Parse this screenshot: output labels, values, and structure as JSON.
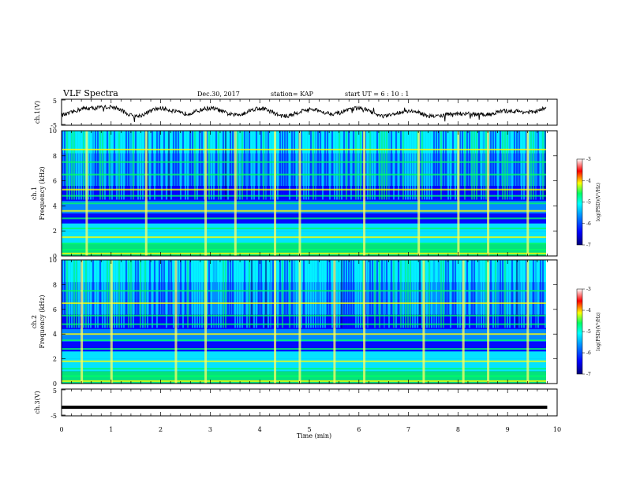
{
  "header": {
    "title": "VLF Spectra",
    "date": "Dec.30, 2017",
    "station": "station= KAP",
    "start": "start  UT =   6  : 10 : 1"
  },
  "chart_data": [
    {
      "type": "line",
      "panel": "ch1-waveform",
      "ylabel": "ch.1(V)",
      "ylim": [
        -5,
        5
      ],
      "yticks": [
        "5",
        "-5"
      ],
      "xlim": [
        0,
        10
      ],
      "note_values_approx": "oscillating waveform, roughly between -2.5 and 2.5 V",
      "x": [
        0.0,
        0.5,
        1.0,
        1.5,
        2.0,
        2.5,
        3.0,
        3.5,
        4.0,
        4.5,
        5.0,
        5.5,
        6.0,
        6.5,
        7.0,
        7.5,
        8.0,
        8.5,
        9.0,
        9.5,
        9.8
      ],
      "values": [
        -1.0,
        1.5,
        2.0,
        -1.5,
        1.5,
        -0.5,
        1.5,
        -1.0,
        1.5,
        -1.5,
        1.0,
        -0.5,
        1.5,
        -1.5,
        0.5,
        -1.5,
        -0.5,
        -1.0,
        0.5,
        0.0,
        1.5
      ]
    },
    {
      "type": "heatmap",
      "panel": "ch1-spectrogram",
      "ylabel": "ch.1\nFrequency (kHz)",
      "yticks": [
        "0",
        "2",
        "4",
        "6",
        "8",
        "10"
      ],
      "ylim": [
        0,
        10
      ],
      "xlim": [
        0,
        10
      ],
      "colorbar": {
        "label": "log(PSD)(V²/Hz)",
        "ticks": [
          "-3",
          "-4",
          "-5",
          "-6",
          "-7"
        ],
        "range": [
          -7,
          -3
        ]
      },
      "horizontal_lines_khz": [
        0.2,
        0.5,
        1.0,
        1.5,
        2.2,
        3.0,
        3.6,
        4.2,
        4.8,
        5.3,
        6.5,
        7.5,
        8.5
      ],
      "bright_columns_min": [
        0.5,
        1.7,
        2.9,
        3.5,
        4.3,
        4.8,
        6.1,
        7.2,
        8.0,
        8.6,
        9.4
      ]
    },
    {
      "type": "heatmap",
      "panel": "ch2-spectrogram",
      "ylabel": "ch.2\nFrequency (kHz)",
      "yticks": [
        "0",
        "2",
        "4",
        "6",
        "8",
        "10"
      ],
      "ylim": [
        0,
        10
      ],
      "xlim": [
        0,
        10
      ],
      "colorbar": {
        "label": "log(PSD)(V²/Hz)",
        "ticks": [
          "-3",
          "-4",
          "-5",
          "-6",
          "-7"
        ],
        "range": [
          -7,
          -3
        ]
      },
      "horizontal_lines_khz": [
        0.2,
        0.6,
        1.2,
        1.8,
        2.8,
        3.5,
        4.0,
        4.8,
        5.5,
        6.5,
        7.5
      ],
      "bright_columns_min": [
        0.4,
        1.0,
        2.3,
        2.9,
        4.3,
        4.8,
        5.5,
        6.1,
        7.3,
        8.1,
        8.6,
        9.4
      ]
    },
    {
      "type": "line",
      "panel": "ch3-waveform",
      "ylabel": "ch.3(V)",
      "ylim": [
        -5,
        5
      ],
      "yticks": [
        "5",
        "-5"
      ],
      "xlim": [
        0,
        10
      ],
      "x": [
        0,
        9.8
      ],
      "values": [
        -1.8,
        -1.8
      ]
    }
  ],
  "x_axis": {
    "label": "Time  (min)",
    "ticks": [
      "0",
      "1",
      "2",
      "3",
      "4",
      "5",
      "6",
      "7",
      "8",
      "9",
      "10"
    ]
  },
  "colors": {
    "colormap": [
      "#00007a",
      "#0000ff",
      "#0096ff",
      "#00ffff",
      "#00ff66",
      "#ffff00",
      "#ff0000",
      "#ffffff"
    ]
  }
}
